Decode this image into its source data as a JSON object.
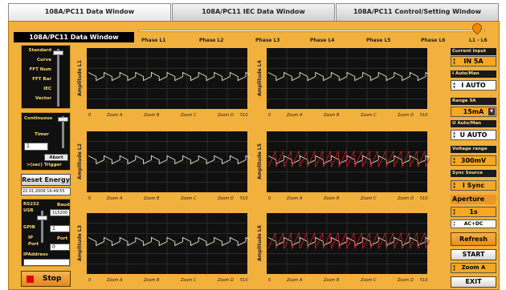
{
  "tabs": [
    "108A/PC11 Data Window",
    "108A/PC11 IEC Data Window",
    "108A/PC11 Control/Setting Window"
  ],
  "window_title": "108A/PC11 Data Window",
  "phase_labels": [
    "Phase L1",
    "Phase L2",
    "Phase L3",
    "Phase L4",
    "Phase L5",
    "Phase L6"
  ],
  "phase_range": "L1 - L6",
  "left": {
    "modes": [
      "Standard",
      "Curve",
      "FFT Num",
      "FFT Bar",
      "IEC",
      "Vector"
    ],
    "continuous": "Continuous",
    "timer": "Timer",
    "timer_value": "1",
    "abort": "Abort",
    "trigger": ">(sec) Trigger",
    "reset_energy": "Reset Energy",
    "datetime": "22.01.2008 14:49:55",
    "rs232": "RS232",
    "usb": "USB",
    "baud": "Baud",
    "baud_value": "115200",
    "gpib": "GPIB",
    "ip": "IP",
    "port": "Port",
    "port_value": "1",
    "port_value_b": "0",
    "ip_address": "IPAddress",
    "stop": "Stop"
  },
  "charts": [
    {
      "ylabel": "Amplitude L1",
      "zooms": [
        "Zoom A",
        "Zoom B",
        "Zoom C",
        "Zoom D"
      ],
      "x_start": "0",
      "x_end": "510"
    },
    {
      "ylabel": "Amplitude L4",
      "zooms": [
        "Zoom A",
        "Zoom B",
        "Zoom C",
        "Zoom D"
      ],
      "x_start": "0",
      "x_end": "510"
    },
    {
      "ylabel": "Amplitude L2",
      "zooms": [
        "Zoom A",
        "Zoom B",
        "Zoom C",
        "Zoom D"
      ],
      "x_start": "0",
      "x_end": "510"
    },
    {
      "ylabel": "Amplitude L5",
      "zooms": [
        "Zoom A",
        "Zoom B",
        "Zoom C",
        "Zoom D"
      ],
      "x_start": "0",
      "x_end": "510"
    },
    {
      "ylabel": "Amplitude L3",
      "zooms": [
        "Zoom A",
        "Zoom B",
        "Zoom C",
        "Zoom D"
      ],
      "x_start": "0",
      "x_end": "510"
    },
    {
      "ylabel": "Amplitude L6",
      "zooms": [
        "Zoom A",
        "Zoom B",
        "Zoom C",
        "Zoom D"
      ],
      "x_start": "0",
      "x_end": "510"
    }
  ],
  "right": {
    "current_input_label": "Current Input",
    "current_input": "IN 5A",
    "i_mode_label": "I Auto/Man",
    "i_mode": "I AUTO",
    "range_label": "Range 5A",
    "range": "15mA",
    "u_mode_label": "U Auto/Man",
    "u_mode": "U AUTO",
    "voltage_range_label": "Voltage range",
    "voltage_range": "300mV",
    "sync_label": "Sync Source",
    "sync": "I Sync",
    "aperture": "Aperture",
    "aperture_value": "1s",
    "coupling": "AC+DC",
    "refresh": "Refresh",
    "start": "START",
    "zoom": "Zoom A",
    "exit": "EXIT"
  },
  "colors": {
    "panel": "#f2b03c",
    "plot_bg": "#101010",
    "grid": "#3a3a3a",
    "trace_voltage": "#e8e8c8",
    "trace_current": "#d02020"
  }
}
